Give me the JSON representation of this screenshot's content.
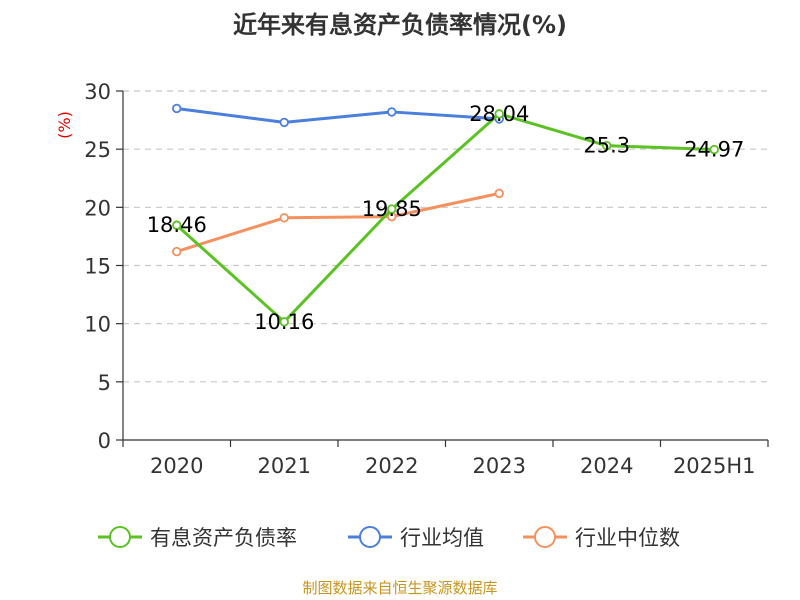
{
  "chart_data": {
    "type": "line",
    "title": "近年来有息资产负债率情况(%)",
    "ylabel": "(%)",
    "xlabel": "",
    "categories": [
      "2020",
      "2021",
      "2022",
      "2023",
      "2024",
      "2025H1"
    ],
    "ylim": [
      0,
      30
    ],
    "yticks": [
      0,
      5,
      10,
      15,
      20,
      25,
      30
    ],
    "grid": true,
    "legend_position": "bottom",
    "series": [
      {
        "name": "有息资产负债率",
        "color": "#5cc224",
        "values": [
          18.46,
          10.16,
          19.85,
          28.04,
          25.3,
          24.97
        ],
        "labels": [
          "18.46",
          "10.16",
          "19.85",
          "28.04",
          "25.3",
          "24.97"
        ]
      },
      {
        "name": "行业均值",
        "color": "#4a7fdc",
        "values": [
          28.5,
          27.3,
          28.2,
          27.6,
          null,
          null
        ]
      },
      {
        "name": "行业中位数",
        "color": "#f5915e",
        "values": [
          16.2,
          19.1,
          19.2,
          21.2,
          null,
          null
        ]
      }
    ]
  },
  "source": "制图数据来自恒生聚源数据库"
}
